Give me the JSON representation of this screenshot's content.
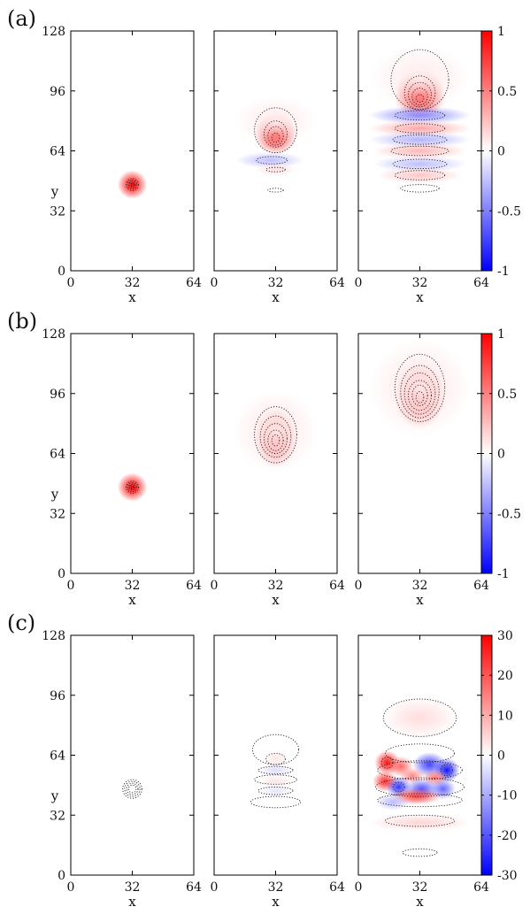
{
  "chart_data": {
    "type": "heatmap",
    "description_rows": 3,
    "rows": [
      {
        "label": "(a)",
        "colorbar": {
          "min": -1,
          "max": 1,
          "ticks": [
            1,
            0.5,
            0,
            -0.5,
            -1
          ],
          "tick_labels": [
            "1",
            "0.5",
            "0",
            "-0.5",
            "-1"
          ]
        },
        "panels": [
          {
            "blobs": [
              {
                "x": 32,
                "y": 46,
                "sx": 3.5,
                "sy": 3.5,
                "v": 1.0
              }
            ],
            "contours": [
              {
                "x": 32,
                "y": 46,
                "rx": 3.2,
                "ry": 3.2
              },
              {
                "x": 32,
                "y": 46,
                "rx": 2.4,
                "ry": 2.4
              },
              {
                "x": 32,
                "y": 46,
                "rx": 1.6,
                "ry": 1.6
              },
              {
                "x": 32,
                "y": 46,
                "rx": 0.8,
                "ry": 0.8
              }
            ]
          },
          {
            "blobs": [
              {
                "x": 32,
                "y": 73,
                "sx": 5,
                "sy": 5,
                "v": 0.9
              },
              {
                "x": 32,
                "y": 80,
                "sx": 10,
                "sy": 6,
                "v": 0.08
              },
              {
                "x": 29,
                "y": 59,
                "sx": 8,
                "sy": 2,
                "v": -0.25
              },
              {
                "x": 32,
                "y": 54,
                "sx": 5,
                "sy": 1.5,
                "v": 0.12
              }
            ],
            "contours": [
              {
                "x": 32,
                "y": 75,
                "rx": 11,
                "ry": 12
              },
              {
                "x": 32,
                "y": 73,
                "rx": 6,
                "ry": 7
              },
              {
                "x": 32,
                "y": 72,
                "rx": 4,
                "ry": 5
              },
              {
                "x": 32,
                "y": 71,
                "rx": 2,
                "ry": 2.5
              },
              {
                "x": 30,
                "y": 59,
                "rx": 8,
                "ry": 2
              },
              {
                "x": 32,
                "y": 54,
                "rx": 5,
                "ry": 1.2
              },
              {
                "x": 32,
                "y": 43,
                "rx": 4,
                "ry": 1
              }
            ]
          },
          {
            "blobs": [
              {
                "x": 32,
                "y": 94,
                "sx": 6,
                "sy": 6,
                "v": 0.95
              },
              {
                "x": 32,
                "y": 103,
                "sx": 12,
                "sy": 8,
                "v": 0.08
              },
              {
                "x": 32,
                "y": 83,
                "sx": 12,
                "sy": 2.2,
                "v": -0.45
              },
              {
                "x": 32,
                "y": 76,
                "sx": 12,
                "sy": 2,
                "v": 0.35
              },
              {
                "x": 32,
                "y": 70,
                "sx": 12,
                "sy": 2,
                "v": -0.3
              },
              {
                "x": 32,
                "y": 64,
                "sx": 11,
                "sy": 2,
                "v": 0.28
              },
              {
                "x": 32,
                "y": 57,
                "sx": 11,
                "sy": 2,
                "v": -0.25
              },
              {
                "x": 32,
                "y": 51,
                "sx": 10,
                "sy": 2,
                "v": 0.22
              }
            ],
            "contours": [
              {
                "x": 32,
                "y": 102,
                "rx": 15,
                "ry": 16
              },
              {
                "x": 32,
                "y": 95,
                "rx": 8,
                "ry": 9
              },
              {
                "x": 32,
                "y": 94,
                "rx": 6,
                "ry": 6.5
              },
              {
                "x": 32,
                "y": 93,
                "rx": 4,
                "ry": 4.5
              },
              {
                "x": 32,
                "y": 92,
                "rx": 2,
                "ry": 2
              },
              {
                "x": 32,
                "y": 83,
                "rx": 13,
                "ry": 2.5
              },
              {
                "x": 32,
                "y": 76,
                "rx": 13,
                "ry": 2.5
              },
              {
                "x": 32,
                "y": 70,
                "rx": 14,
                "ry": 2.5
              },
              {
                "x": 32,
                "y": 64,
                "rx": 15,
                "ry": 2.5
              },
              {
                "x": 32,
                "y": 57,
                "rx": 14,
                "ry": 2.5
              },
              {
                "x": 32,
                "y": 51,
                "rx": 13,
                "ry": 2.5
              },
              {
                "x": 32,
                "y": 44,
                "rx": 10,
                "ry": 2
              }
            ]
          }
        ]
      },
      {
        "label": "(b)",
        "colorbar": {
          "min": -1,
          "max": 1,
          "ticks": [
            1,
            0.5,
            0,
            -0.5,
            -1
          ],
          "tick_labels": [
            "1",
            "0.5",
            "0",
            "-0.5",
            "-1"
          ]
        },
        "panels": [
          {
            "blobs": [
              {
                "x": 32,
                "y": 46,
                "sx": 3.5,
                "sy": 3.5,
                "v": 1.0
              }
            ],
            "contours": [
              {
                "x": 32,
                "y": 46,
                "rx": 3.2,
                "ry": 3.2
              },
              {
                "x": 32,
                "y": 46,
                "rx": 2.4,
                "ry": 2.4
              },
              {
                "x": 32,
                "y": 46,
                "rx": 1.6,
                "ry": 1.6
              },
              {
                "x": 32,
                "y": 46,
                "rx": 0.8,
                "ry": 0.8
              }
            ]
          },
          {
            "blobs": [
              {
                "x": 32,
                "y": 72,
                "sx": 5,
                "sy": 7,
                "v": 0.65
              },
              {
                "x": 32,
                "y": 76,
                "sx": 10,
                "sy": 10,
                "v": 0.1
              }
            ],
            "contours": [
              {
                "x": 32,
                "y": 74,
                "rx": 11,
                "ry": 15
              },
              {
                "x": 32,
                "y": 73,
                "rx": 8,
                "ry": 11
              },
              {
                "x": 32,
                "y": 72,
                "rx": 6,
                "ry": 8
              },
              {
                "x": 32,
                "y": 71,
                "rx": 4,
                "ry": 5.5
              },
              {
                "x": 32,
                "y": 71,
                "rx": 2,
                "ry": 3
              }
            ]
          },
          {
            "blobs": [
              {
                "x": 32,
                "y": 95,
                "sx": 6,
                "sy": 8,
                "v": 0.6
              },
              {
                "x": 32,
                "y": 99,
                "sx": 12,
                "sy": 12,
                "v": 0.1
              }
            ],
            "contours": [
              {
                "x": 32,
                "y": 99,
                "rx": 13,
                "ry": 18
              },
              {
                "x": 32,
                "y": 97,
                "rx": 10,
                "ry": 14
              },
              {
                "x": 32,
                "y": 96,
                "rx": 8,
                "ry": 11
              },
              {
                "x": 32,
                "y": 95,
                "rx": 6,
                "ry": 8
              },
              {
                "x": 32,
                "y": 95,
                "rx": 4,
                "ry": 5.5
              },
              {
                "x": 32,
                "y": 94,
                "rx": 2,
                "ry": 3
              }
            ]
          }
        ]
      },
      {
        "label": "(c)",
        "colorbar": {
          "min": -30,
          "max": 30,
          "ticks": [
            30,
            20,
            10,
            0,
            -10,
            -20,
            -30
          ],
          "tick_labels": [
            "30",
            "20",
            "10",
            "0",
            "-10",
            "-20",
            "-30"
          ]
        },
        "panels": [
          {
            "blobs": [],
            "contours": [
              {
                "x": 32,
                "y": 46,
                "rx": 5,
                "ry": 5
              },
              {
                "x": 32,
                "y": 46,
                "rx": 4,
                "ry": 4
              },
              {
                "x": 32,
                "y": 46,
                "rx": 3,
                "ry": 3
              },
              {
                "x": 32,
                "y": 46,
                "rx": 2,
                "ry": 2
              }
            ]
          },
          {
            "blobs": [
              {
                "x": 32,
                "y": 62,
                "sx": 3,
                "sy": 2,
                "v": 3
              },
              {
                "x": 32,
                "y": 56,
                "sx": 4,
                "sy": 1.5,
                "v": -4
              },
              {
                "x": 32,
                "y": 50,
                "sx": 4,
                "sy": 1.5,
                "v": 3
              },
              {
                "x": 32,
                "y": 45,
                "sx": 4,
                "sy": 1.5,
                "v": -3
              }
            ],
            "contours": [
              {
                "x": 32,
                "y": 67,
                "rx": 12,
                "ry": 8
              },
              {
                "x": 32,
                "y": 62,
                "rx": 5,
                "ry": 3
              },
              {
                "x": 32,
                "y": 56,
                "rx": 9,
                "ry": 2
              },
              {
                "x": 32,
                "y": 51,
                "rx": 11,
                "ry": 2.5
              },
              {
                "x": 32,
                "y": 45,
                "rx": 9,
                "ry": 2
              },
              {
                "x": 32,
                "y": 39,
                "rx": 13,
                "ry": 3
              }
            ]
          },
          {
            "blobs": [
              {
                "x": 32,
                "y": 84,
                "sx": 9,
                "sy": 5,
                "v": 4
              },
              {
                "x": 15,
                "y": 60,
                "sx": 3,
                "sy": 3,
                "v": 28
              },
              {
                "x": 22,
                "y": 58,
                "sx": 3,
                "sy": 2.5,
                "v": 18
              },
              {
                "x": 37,
                "y": 59,
                "sx": 4,
                "sy": 3,
                "v": -22
              },
              {
                "x": 46,
                "y": 56,
                "sx": 3,
                "sy": 3,
                "v": -28
              },
              {
                "x": 28,
                "y": 53,
                "sx": 3,
                "sy": 2,
                "v": 14
              },
              {
                "x": 40,
                "y": 52,
                "sx": 3,
                "sy": 2,
                "v": 16
              },
              {
                "x": 14,
                "y": 50,
                "sx": 3,
                "sy": 2.5,
                "v": 25
              },
              {
                "x": 21,
                "y": 47,
                "sx": 3,
                "sy": 2.5,
                "v": -24
              },
              {
                "x": 33,
                "y": 46,
                "sx": 4,
                "sy": 2.5,
                "v": -20
              },
              {
                "x": 44,
                "y": 46,
                "sx": 3,
                "sy": 2.5,
                "v": -18
              },
              {
                "x": 30,
                "y": 42,
                "sx": 6,
                "sy": 2,
                "v": 22
              },
              {
                "x": 18,
                "y": 39,
                "sx": 4,
                "sy": 2,
                "v": -8
              },
              {
                "x": 32,
                "y": 28,
                "sx": 12,
                "sy": 2,
                "v": 5
              }
            ],
            "contours": [
              {
                "x": 32,
                "y": 84,
                "rx": 19,
                "ry": 10
              },
              {
                "x": 32,
                "y": 65,
                "rx": 18,
                "ry": 5
              },
              {
                "x": 32,
                "y": 56,
                "rx": 22,
                "ry": 5
              },
              {
                "x": 32,
                "y": 47,
                "rx": 23,
                "ry": 5
              },
              {
                "x": 32,
                "y": 40,
                "rx": 22,
                "ry": 3.5
              },
              {
                "x": 32,
                "y": 29,
                "rx": 18,
                "ry": 3
              },
              {
                "x": 32,
                "y": 12,
                "rx": 9,
                "ry": 2
              },
              {
                "x": 15,
                "y": 60,
                "rx": 3,
                "ry": 3
              },
              {
                "x": 46,
                "y": 56,
                "rx": 3,
                "ry": 3
              },
              {
                "x": 21,
                "y": 47,
                "rx": 3,
                "ry": 2.5
              }
            ]
          }
        ]
      }
    ],
    "x_ticks": [
      0,
      32,
      64
    ],
    "y_ticks": [
      0,
      32,
      64,
      96,
      128
    ],
    "xlabel": "x",
    "ylabel": "y",
    "xlim": [
      0,
      64
    ],
    "ylim": [
      0,
      128
    ],
    "colormap": {
      "negative": "#0000ff",
      "zero": "#ffffff",
      "positive": "#ff0000"
    },
    "contour_style": "dotted black",
    "grid": false
  }
}
